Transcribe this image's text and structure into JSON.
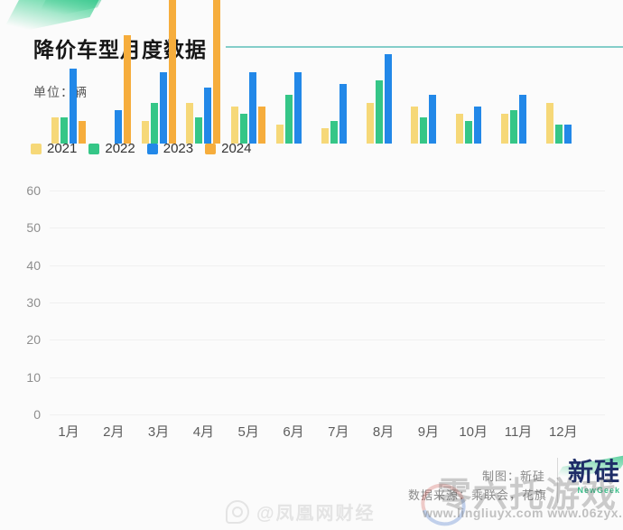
{
  "header": {
    "title": "降价车型月度数据",
    "unit_label": "单位：辆",
    "accent_color": "#84cec9"
  },
  "chart_data": {
    "type": "bar",
    "title": "降价车型月度数据",
    "unit": "辆",
    "categories": [
      "1月",
      "2月",
      "3月",
      "4月",
      "5月",
      "6月",
      "7月",
      "8月",
      "9月",
      "10月",
      "11月",
      "12月"
    ],
    "series": [
      {
        "name": "2021",
        "color": "#F6D878",
        "values": [
          7,
          null,
          6,
          11,
          10,
          5,
          4,
          11,
          10,
          8,
          8,
          11
        ]
      },
      {
        "name": "2022",
        "color": "#35C687",
        "values": [
          7,
          null,
          11,
          7,
          8,
          13,
          6,
          17,
          7,
          6,
          9,
          5
        ]
      },
      {
        "name": "2023",
        "color": "#2288E8",
        "values": [
          20,
          9,
          19,
          15,
          19,
          19,
          16,
          24,
          13,
          10,
          13,
          5
        ]
      },
      {
        "name": "2024",
        "color": "#F6AD3C",
        "values": [
          6,
          29,
          49,
          54,
          10,
          null,
          null,
          null,
          null,
          null,
          null,
          null
        ]
      }
    ],
    "ylim": [
      0,
      60
    ],
    "yticks": [
      0,
      10,
      20,
      30,
      40,
      50,
      60
    ],
    "grid": true,
    "legend_position": "top-left"
  },
  "footer": {
    "credit": "制图：新硅",
    "source": "数据来源：乘联会，花旗",
    "logo_text": "新硅",
    "logo_subtext": "NewGeek"
  },
  "watermarks": {
    "weibo_handle": "@凤凰网财经",
    "site_text": "零六托游戏",
    "site_urls": "www.lingliuyx.com   www.06zyx.com"
  }
}
